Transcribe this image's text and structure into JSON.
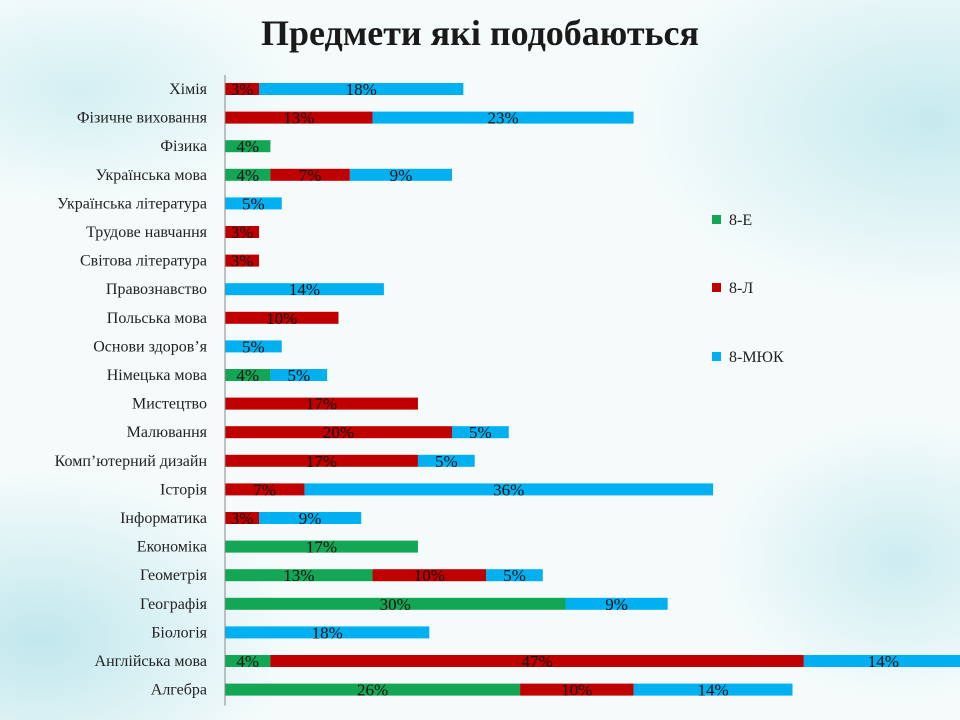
{
  "title": "Предмети які подобаються",
  "chart_data": {
    "type": "bar",
    "orientation": "horizontal",
    "stacked": true,
    "title": "Предмети які подобаються",
    "categories": [
      "Хімія",
      "Фізичне виховання",
      "Фізика",
      "Українська мова",
      "Українська література",
      "Трудове навчання",
      "Світова література",
      "Правознавство",
      "Польська мова",
      "Основи здоров’я",
      "Німецька мова",
      "Мистецтво",
      "Малювання",
      "Комп’ютерний дизайн",
      "Історія",
      "Інформатика",
      "Економіка",
      "Геометрія",
      "Географія",
      "Біологія",
      "Англійська мова",
      "Алгебра"
    ],
    "series": [
      {
        "name": "8-Е",
        "color": "#13a654",
        "values": [
          0,
          0,
          4,
          4,
          0,
          0,
          0,
          0,
          0,
          0,
          4,
          0,
          0,
          0,
          0,
          0,
          17,
          13,
          30,
          0,
          4,
          26
        ]
      },
      {
        "name": "8-Л",
        "color": "#c00000",
        "values": [
          3,
          13,
          0,
          7,
          0,
          3,
          3,
          0,
          10,
          0,
          0,
          17,
          20,
          17,
          7,
          3,
          0,
          10,
          0,
          0,
          47,
          10
        ]
      },
      {
        "name": "8-МЮК",
        "color": "#00b0f0",
        "values": [
          18,
          23,
          0,
          9,
          5,
          0,
          0,
          14,
          0,
          5,
          5,
          0,
          5,
          5,
          36,
          9,
          0,
          5,
          9,
          18,
          14,
          14
        ]
      }
    ],
    "value_suffix": "%",
    "legend_position": "right",
    "grid": false
  }
}
